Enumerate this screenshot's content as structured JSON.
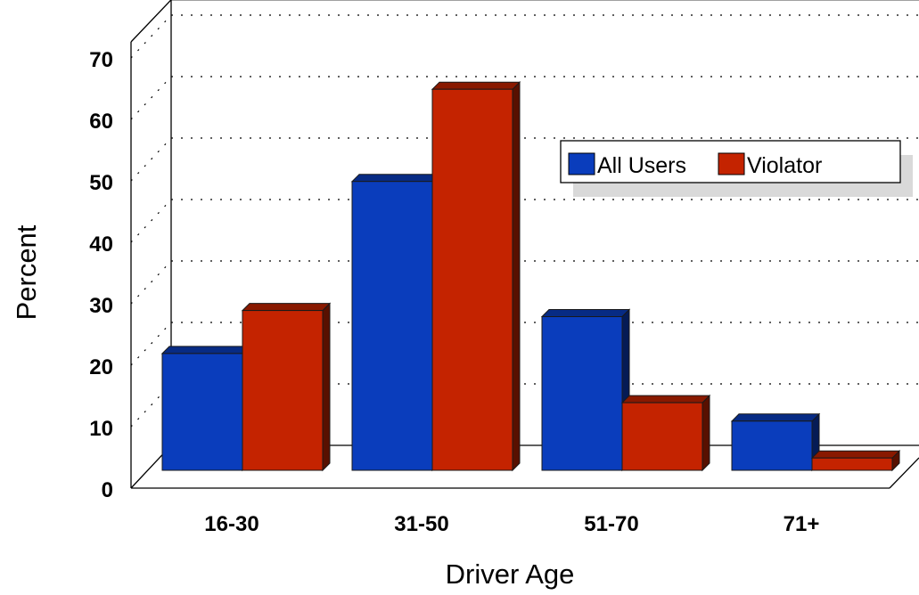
{
  "chart_data": {
    "type": "bar",
    "title": "",
    "xlabel": "Driver Age",
    "ylabel": "Percent",
    "categories": [
      "16-30",
      "31-50",
      "51-70",
      "71+"
    ],
    "series": [
      {
        "name": "All Users",
        "values": [
          19,
          47,
          25,
          8
        ],
        "color": "#0a3dbc"
      },
      {
        "name": "Violator",
        "values": [
          26,
          62,
          11,
          2
        ],
        "color": "#c42300"
      }
    ],
    "ylim": [
      0,
      70
    ],
    "yticks": [
      "0",
      "10",
      "20",
      "30",
      "40",
      "50",
      "60",
      "70"
    ],
    "grid": true,
    "legend_position": "top-right",
    "style": "3d"
  }
}
